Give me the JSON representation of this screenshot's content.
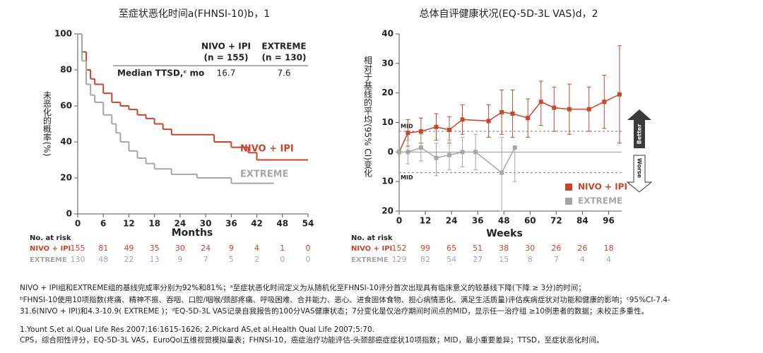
{
  "chart_data": [
    {
      "type": "km",
      "title": "至症状恶化时间a(FHNSI-10)b，1",
      "ylabel": "未恶化的概率(%)",
      "xlabel": "Months",
      "xlim": [
        0,
        54
      ],
      "xticks": [
        0,
        6,
        12,
        18,
        24,
        30,
        36,
        42,
        48,
        54
      ],
      "ylim": [
        0,
        100
      ],
      "yticks": [
        0,
        20,
        40,
        60,
        80,
        100
      ],
      "series": [
        {
          "name": "NIVO + IPI",
          "color": "#c8462a",
          "x": [
            0,
            1,
            2,
            3,
            4,
            6,
            8,
            10,
            12,
            14,
            16,
            18,
            20,
            22,
            30,
            32,
            36,
            40,
            42,
            54
          ],
          "y": [
            100,
            90,
            80,
            75,
            72,
            67,
            62,
            60,
            58,
            55,
            53,
            50,
            47,
            44,
            44,
            40,
            37,
            34,
            30,
            30
          ]
        },
        {
          "name": "EXTREME",
          "color": "#a6a6a6",
          "x": [
            0,
            1,
            2,
            3,
            4,
            6,
            8,
            9,
            10,
            12,
            14,
            16,
            18,
            22,
            28,
            36,
            46
          ],
          "y": [
            100,
            85,
            72,
            66,
            62,
            55,
            50,
            45,
            40,
            35,
            31,
            28,
            25,
            22,
            20,
            17,
            17
          ]
        }
      ],
      "median_table": {
        "headers": [
          [
            "NIVO + IPI",
            "(n = 155)"
          ],
          [
            "EXTREME",
            "(n = 130)"
          ]
        ],
        "label": "Median TTSD,ᶜ mo",
        "values": [
          16.7,
          7.6
        ]
      },
      "risk_table": {
        "label": "No. at risk",
        "counts": [
          [
            155,
            81,
            49,
            35,
            30,
            24,
            9,
            4,
            1,
            0
          ],
          [
            130,
            48,
            22,
            13,
            9,
            7,
            5,
            2,
            0,
            0
          ]
        ]
      }
    },
    {
      "type": "errorbar_line",
      "title": "总体自评健康状况(EQ-5D-3L VAS)d，2",
      "ylabel": "相对于基线的平均(95% CI)变化",
      "xlabel": "Weeks",
      "xlim": [
        0,
        102
      ],
      "xticks": [
        0,
        12,
        24,
        36,
        48,
        60,
        72,
        84,
        96
      ],
      "ylim": [
        -20,
        40
      ],
      "yticks": [
        {
          "value": -20,
          "label": "20"
        },
        {
          "value": -10,
          "label": "10"
        },
        0,
        10,
        20,
        30,
        40
      ],
      "mid_lines": [
        {
          "value": 7,
          "label": "MID"
        },
        {
          "value": -7,
          "label": "MID"
        }
      ],
      "better": "Better",
      "worse": "Worse",
      "series": [
        {
          "name": "NIVO + IPI",
          "color": "#c8462a",
          "x": [
            0,
            4,
            10,
            17,
            23,
            29,
            41,
            47,
            52,
            59,
            65,
            71,
            78,
            87,
            94,
            101
          ],
          "values": [
            0,
            6.5,
            7,
            8.5,
            7.5,
            11,
            10.5,
            13.5,
            13,
            11.5,
            17,
            15,
            14.5,
            14.5,
            17,
            19.5
          ],
          "ci_low": [
            null,
            2,
            3,
            4,
            3,
            6,
            5,
            6,
            5,
            5,
            9,
            7,
            6,
            7,
            8,
            3
          ],
          "ci_high": [
            null,
            11,
            11.5,
            13,
            12,
            16,
            16,
            21,
            21,
            18,
            24,
            22,
            23,
            22,
            26,
            36
          ]
        },
        {
          "name": "EXTREME",
          "color": "#a6a6a6",
          "x": [
            0,
            4,
            10,
            17,
            23,
            29,
            35,
            47,
            53
          ],
          "values": [
            0,
            0,
            1.5,
            -2,
            -1,
            0,
            0,
            -7,
            1.5
          ],
          "ci_low": [
            null,
            -4,
            -3,
            -8,
            -6,
            -5,
            -6,
            -20,
            -10
          ],
          "ci_high": [
            null,
            4,
            6,
            3,
            4,
            5,
            6,
            5,
            2
          ]
        }
      ],
      "risk_table": {
        "label": "No. at risk",
        "counts": [
          [
            152,
            99,
            65,
            51,
            38,
            30,
            26,
            26,
            18
          ],
          [
            129,
            82,
            54,
            27,
            15,
            8,
            7,
            4,
            4
          ]
        ]
      }
    }
  ],
  "footnotes": [
    "NIVO + IPI组和EXTREME组的基线完成率分别为92%和81%；ᵃ至症状恶化时间定义为从随机化至FHNSI-10评分首次出现具有临床意义的较基线下降(下降 ≥ 3分)的时间；",
    "ᵇFHNSI-10使用10项指数(疼痛、精神不振、吞咽、口腔/咽喉/颈部疼痛、呼吸困难、合并能力、恶心、进食固体食物、担心病情恶化、满足生活质量)评估疾病症状对功能和健康的影响；ᶜ95%CI-7.4-",
    "31.6(NIVO + IPI)和4.3-10.9( EXTREME )；ᵈEQ-5D-3L VAS记录自我报告的100分VAS健康状态；7分变化是仅治疗期间时间点的MID，显示任一治疗组 ≥10例患者的数据；未校正多重性。",
    "1.Yount S,et al.Qual Life Res 2007;16:1615-1626; 2.Pickard AS,et al.Health Qual Life 2007;5:70.",
    "CPS，综合阳性评分，EQ-5D-3L VAS，EuroQol五维视觉模拟量表；FHNSI-10，癌症治疗功能评估-头颈部癌症症状10项指数；MID，最小重要差异；TTSD，至症状恶化时间。"
  ]
}
